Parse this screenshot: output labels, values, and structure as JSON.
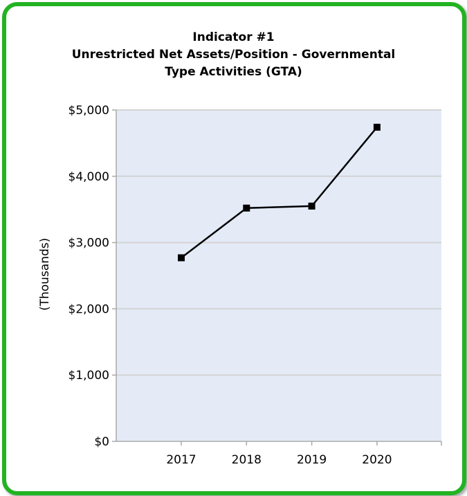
{
  "chart_data": {
    "type": "line",
    "title_lines": [
      "Indicator #1",
      "Unrestricted Net Assets/Position - Governmental",
      "Type Activities (GTA)"
    ],
    "xlabel": "",
    "ylabel": "(Thousands)",
    "categories": [
      "2017",
      "2018",
      "2019",
      "2020"
    ],
    "series": [
      {
        "values": [
          2770,
          3520,
          3550,
          4740
        ]
      }
    ],
    "ylim": [
      0,
      5000
    ],
    "yticks": [
      0,
      1000,
      2000,
      3000,
      4000,
      5000
    ],
    "ytick_labels": [
      "$0",
      "$1,000",
      "$2,000",
      "$3,000",
      "$4,000",
      "$5,000"
    ],
    "grid": true,
    "legend": "none",
    "colors": {
      "frame": "#22b322",
      "plot_background": "#e4ebf7",
      "gridline": "#d3d3d3",
      "line": "#000000",
      "marker": "#000000"
    }
  }
}
